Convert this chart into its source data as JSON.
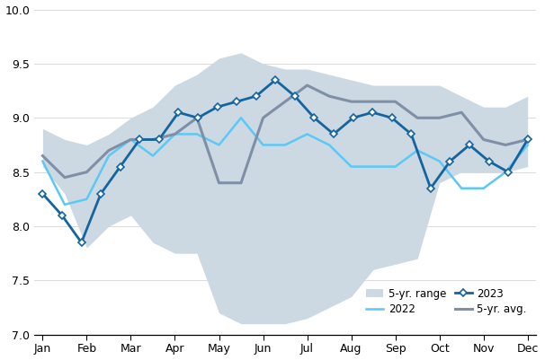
{
  "month_labels": [
    "Jan",
    "Feb",
    "Mar",
    "Apr",
    "May",
    "Jun",
    "Jul",
    "Aug",
    "Sep",
    "Oct",
    "Nov",
    "Dec"
  ],
  "n_points": 26,
  "line_2023": [
    8.3,
    8.1,
    7.85,
    8.3,
    8.55,
    8.8,
    8.8,
    9.05,
    9.0,
    9.1,
    9.15,
    9.2,
    9.35,
    9.2,
    9.0,
    8.85,
    9.0,
    9.05,
    9.0,
    8.85,
    8.35,
    8.6,
    8.75,
    8.6,
    8.5,
    8.8
  ],
  "line_2022_x": [
    0,
    0.5,
    1.0,
    1.5,
    2.0,
    2.5,
    3.0,
    3.5,
    4.0,
    4.5,
    5.0,
    5.5,
    6.0,
    6.5,
    7.0,
    7.5,
    8.0,
    8.5,
    9.0,
    9.5,
    10.0,
    10.5,
    11.0
  ],
  "line_2022": [
    8.6,
    8.2,
    8.25,
    8.65,
    8.8,
    8.65,
    8.85,
    8.85,
    8.75,
    9.0,
    8.75,
    8.75,
    8.85,
    8.75,
    8.55,
    8.55,
    8.55,
    8.7,
    8.6,
    8.35,
    8.35,
    8.5,
    8.75
  ],
  "line_avg_x": [
    0,
    0.5,
    1.0,
    1.5,
    2.0,
    2.5,
    3.0,
    3.5,
    4.0,
    4.5,
    5.0,
    5.5,
    6.0,
    6.5,
    7.0,
    7.5,
    8.0,
    8.5,
    9.0,
    9.5,
    10.0,
    10.5,
    11.0
  ],
  "line_avg": [
    8.65,
    8.45,
    8.5,
    8.7,
    8.8,
    8.8,
    8.85,
    9.0,
    8.4,
    8.4,
    9.0,
    9.15,
    9.3,
    9.2,
    9.15,
    9.15,
    9.15,
    9.0,
    9.0,
    9.05,
    8.8,
    8.75,
    8.8
  ],
  "range_upper_x": [
    0,
    0.5,
    1.0,
    1.5,
    2.0,
    2.5,
    3.0,
    3.5,
    4.0,
    4.5,
    5.0,
    5.5,
    6.0,
    6.5,
    7.0,
    7.5,
    8.0,
    8.5,
    9.0,
    9.5,
    10.0,
    10.5,
    11.0
  ],
  "range_upper": [
    8.9,
    8.8,
    8.75,
    8.85,
    9.0,
    9.1,
    9.3,
    9.4,
    9.55,
    9.6,
    9.5,
    9.45,
    9.45,
    9.4,
    9.35,
    9.3,
    9.3,
    9.3,
    9.3,
    9.2,
    9.1,
    9.1,
    9.2
  ],
  "range_lower_x": [
    0,
    0.5,
    1.0,
    1.5,
    2.0,
    2.5,
    3.0,
    3.5,
    4.0,
    4.5,
    5.0,
    5.5,
    6.0,
    6.5,
    7.0,
    7.5,
    8.0,
    8.5,
    9.0,
    9.5,
    10.0,
    10.5,
    11.0
  ],
  "range_lower": [
    8.55,
    8.3,
    7.8,
    8.0,
    8.1,
    7.85,
    7.75,
    7.75,
    7.2,
    7.1,
    7.1,
    7.1,
    7.15,
    7.25,
    7.35,
    7.6,
    7.65,
    7.7,
    8.4,
    8.5,
    8.5,
    8.5,
    8.55
  ],
  "color_2023": "#1464a0",
  "color_2022": "#5bc8f5",
  "color_avg": "#7f8fa6",
  "color_range_fill": "#ccd9e3",
  "ylim": [
    7.0,
    10.0
  ],
  "yticks": [
    7.0,
    7.5,
    8.0,
    8.5,
    9.0,
    9.5,
    10.0
  ]
}
